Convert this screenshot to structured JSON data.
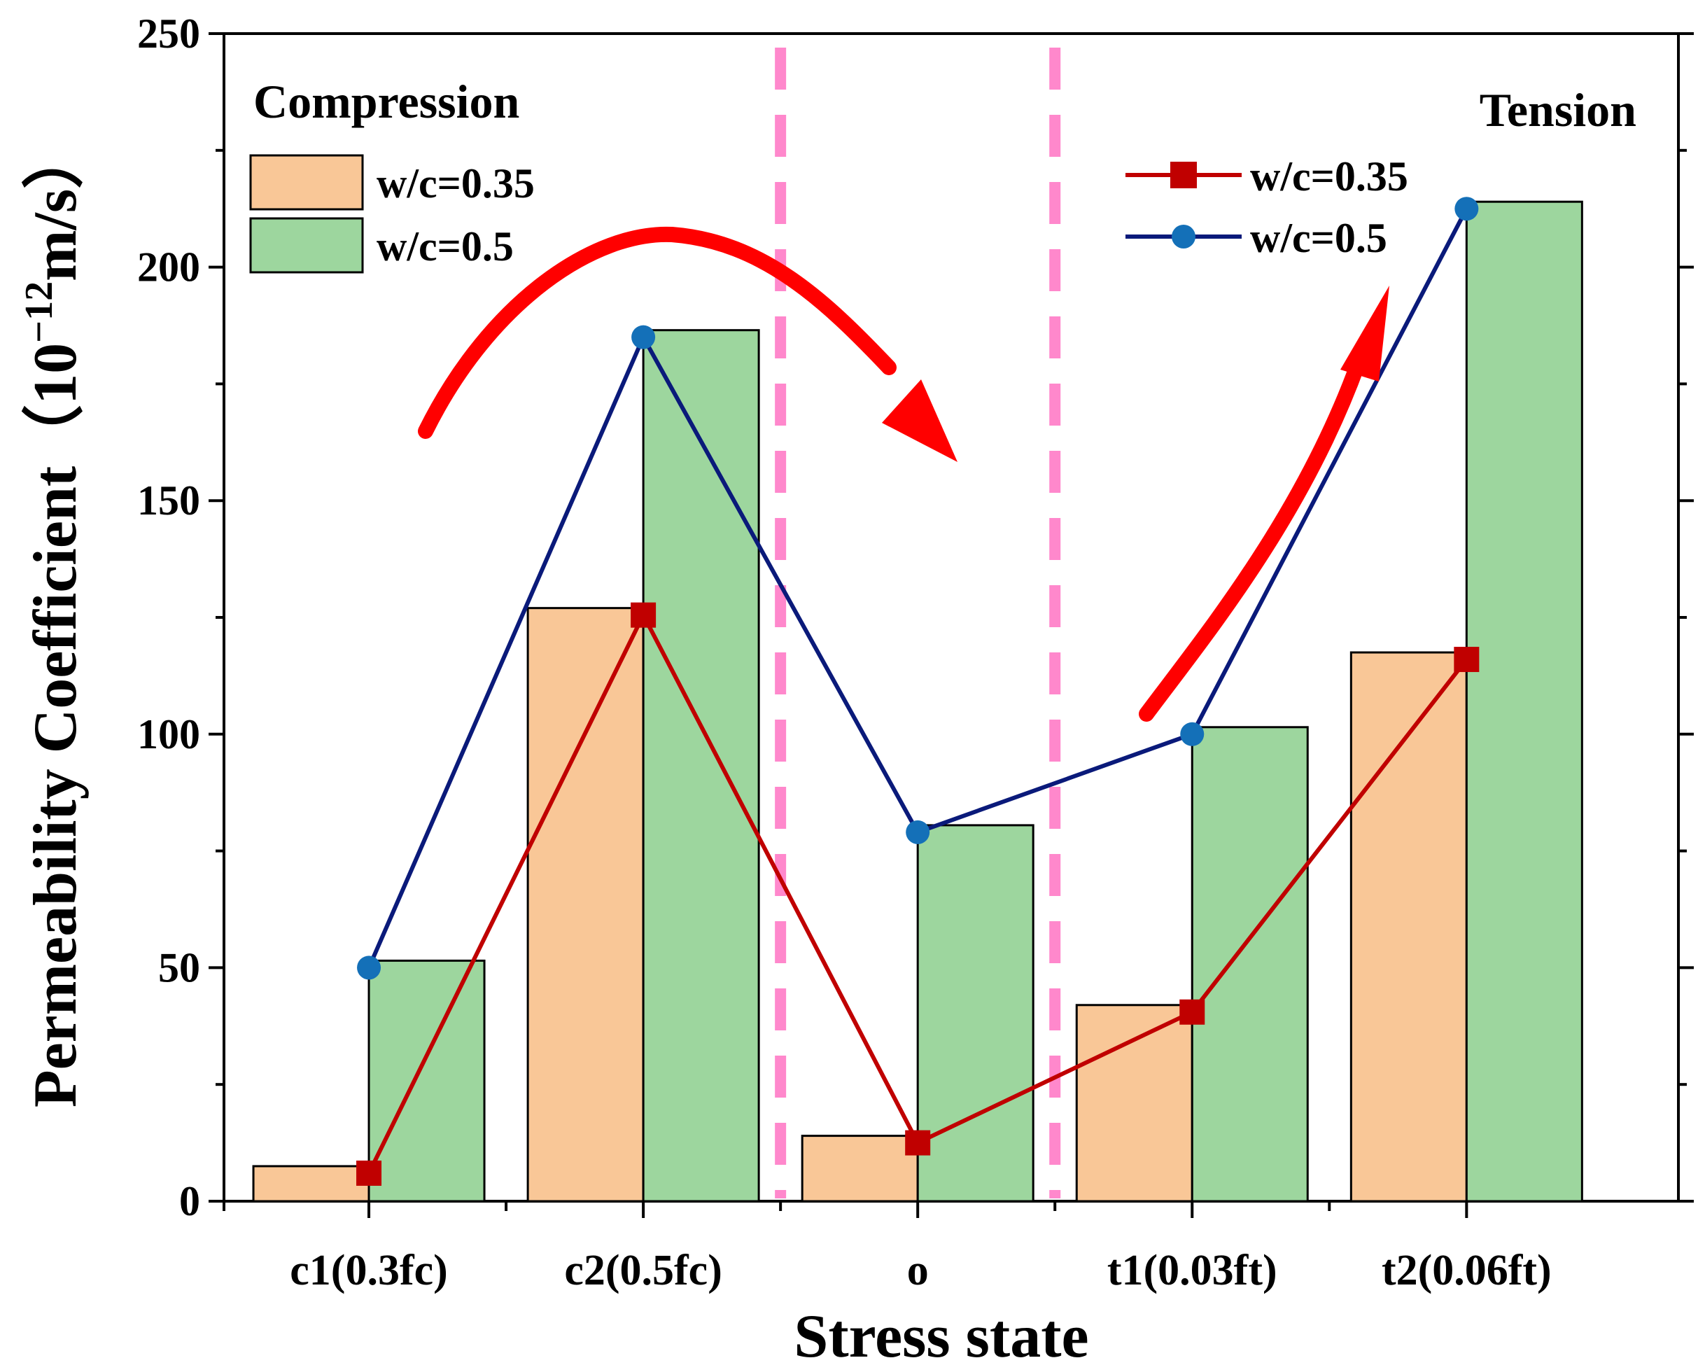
{
  "chart_data": {
    "type": "bar+line",
    "categories": [
      "c1(0.3fc)",
      "c2(0.5fc)",
      "o",
      "t1(0.03ft)",
      "t2(0.06ft)"
    ],
    "bar_series": [
      {
        "name": "w/c=0.35",
        "values": [
          7.5,
          127,
          14,
          42,
          117.5
        ],
        "color": "#f9c797"
      },
      {
        "name": "w/c=0.5",
        "values": [
          51.5,
          186.5,
          80.5,
          101.5,
          214
        ],
        "color": "#9dd69e"
      }
    ],
    "line_series": [
      {
        "name": "w/c=0.35",
        "values": [
          6,
          125.5,
          12.5,
          40.5,
          116
        ],
        "color": "#c00000",
        "marker": "square"
      },
      {
        "name": "w/c=0.5",
        "values": [
          50,
          185,
          79,
          100,
          212.5
        ],
        "color": "#0a1a7a",
        "marker_color": "#1470b8",
        "marker": "circle"
      }
    ],
    "xlabel": "Stress state",
    "ylabel_prefix": "Permeability Coefficient（10",
    "ylabel_exponent": "−12",
    "ylabel_suffix": "m/s）",
    "ylim": [
      0,
      250
    ],
    "yticks": [
      "0",
      "50",
      "100",
      "150",
      "200",
      "250"
    ],
    "region_labels": {
      "compression": "Compression",
      "tension": "Tension"
    },
    "annotations": {
      "divider_color": "#ff88cc",
      "arrow_color": "#ff0000"
    }
  }
}
